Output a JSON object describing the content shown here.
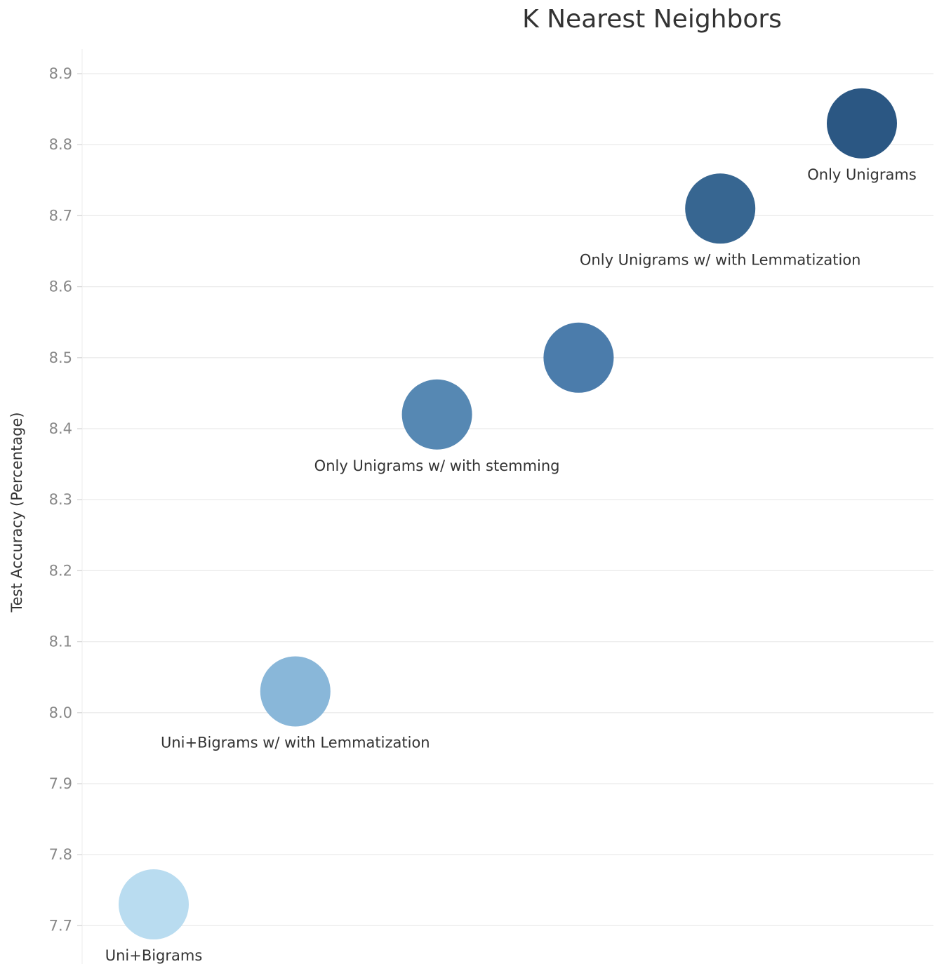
{
  "chart_data": {
    "type": "scatter",
    "title": "K Nearest Neighbors",
    "ylabel": "Test Accuracy (Percentage)",
    "xlabel": "",
    "ylim": [
      7.685,
      8.91
    ],
    "yticks": [
      "7.7",
      "7.8",
      "7.9",
      "8.0",
      "8.1",
      "8.2",
      "8.3",
      "8.4",
      "8.5",
      "8.6",
      "8.7",
      "8.8",
      "8.9"
    ],
    "grid": true,
    "points": [
      {
        "label": "Uni+Bigrams",
        "value": 7.73,
        "color": "#b9dcf0"
      },
      {
        "label": "Uni+Bigrams w/ with Lemmatization",
        "value": 8.03,
        "color": "#89b7d9"
      },
      {
        "label": "Only Unigrams w/ with stemming",
        "value": 8.42,
        "color": "#5688b3"
      },
      {
        "label": "",
        "value": 8.5,
        "color": "#4b7cab"
      },
      {
        "label": "Only Unigrams w/ with Lemmatization",
        "value": 8.71,
        "color": "#376691"
      },
      {
        "label": "Only Unigrams",
        "value": 8.83,
        "color": "#2b5783"
      }
    ]
  }
}
